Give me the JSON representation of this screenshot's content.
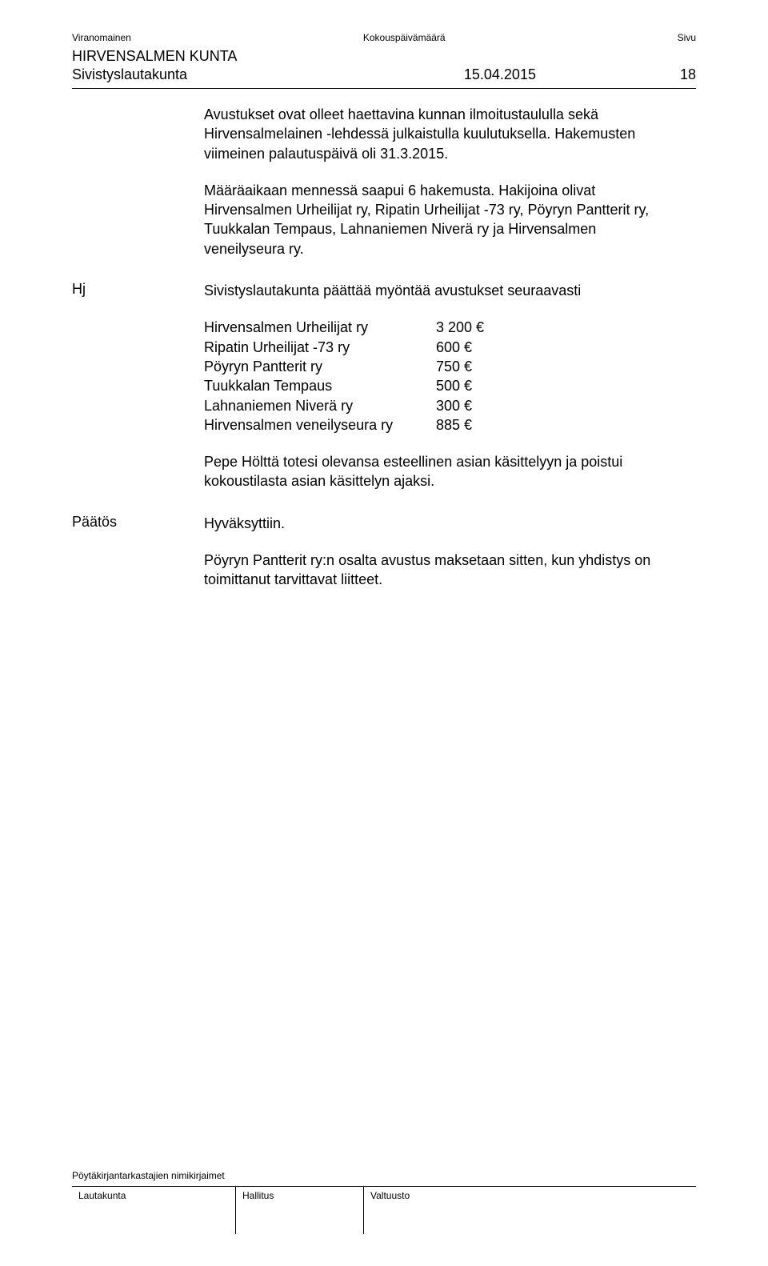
{
  "header": {
    "authority_label": "Viranomainen",
    "meeting_date_label": "Kokouspäivämäärä",
    "page_label": "Sivu",
    "org_name": "HIRVENSALMEN KUNTA",
    "board_name": "Sivistyslautakunta",
    "meeting_date": "15.04.2015",
    "page_number": "18"
  },
  "body": {
    "para1": "Avustukset ovat olleet haettavina kunnan ilmoitustaululla sekä Hirvensalmelainen -lehdessä julkaistulla kuulutuksella. Hakemusten viimeinen palautuspäivä oli 31.3.2015.",
    "para2": "Määräaikaan mennessä saapui 6 hakemusta. Hakijoina olivat Hirvensalmen Urheilijat ry, Ripatin Urheilijat -73 ry, Pöyryn Pantterit ry, Tuukkalan Tempaus, Lahnaniemen Niverä ry ja Hirvensalmen veneilyseura ry."
  },
  "proposal": {
    "label": "Hj",
    "intro": "Sivistyslautakunta päättää myöntää avustukset seuraavasti",
    "grants": [
      {
        "name": "Hirvensalmen Urheilijat ry",
        "amount": "3 200 €"
      },
      {
        "name": "Ripatin Urheilijat -73 ry",
        "amount": "600 €"
      },
      {
        "name": "Pöyryn Pantterit ry",
        "amount": "750 €"
      },
      {
        "name": "Tuukkalan Tempaus",
        "amount": "500 €"
      },
      {
        "name": "Lahnaniemen Niverä ry",
        "amount": "300 €"
      },
      {
        "name": "Hirvensalmen veneilyseura ry",
        "amount": "885 €"
      }
    ],
    "recusal": "Pepe Hölttä totesi olevansa esteellinen asian käsittelyyn ja poistui kokoustilasta asian käsittelyn ajaksi."
  },
  "decision": {
    "label": "Päätös",
    "text": "Hyväksyttiin.",
    "note": "Pöyryn Pantterit ry:n osalta avustus maksetaan sitten, kun yhdistys on toimittanut tarvittavat liitteet."
  },
  "footer": {
    "title": "Pöytäkirjantarkastajien nimikirjaimet",
    "cols": [
      "Lautakunta",
      "Hallitus",
      "Valtuusto"
    ]
  }
}
